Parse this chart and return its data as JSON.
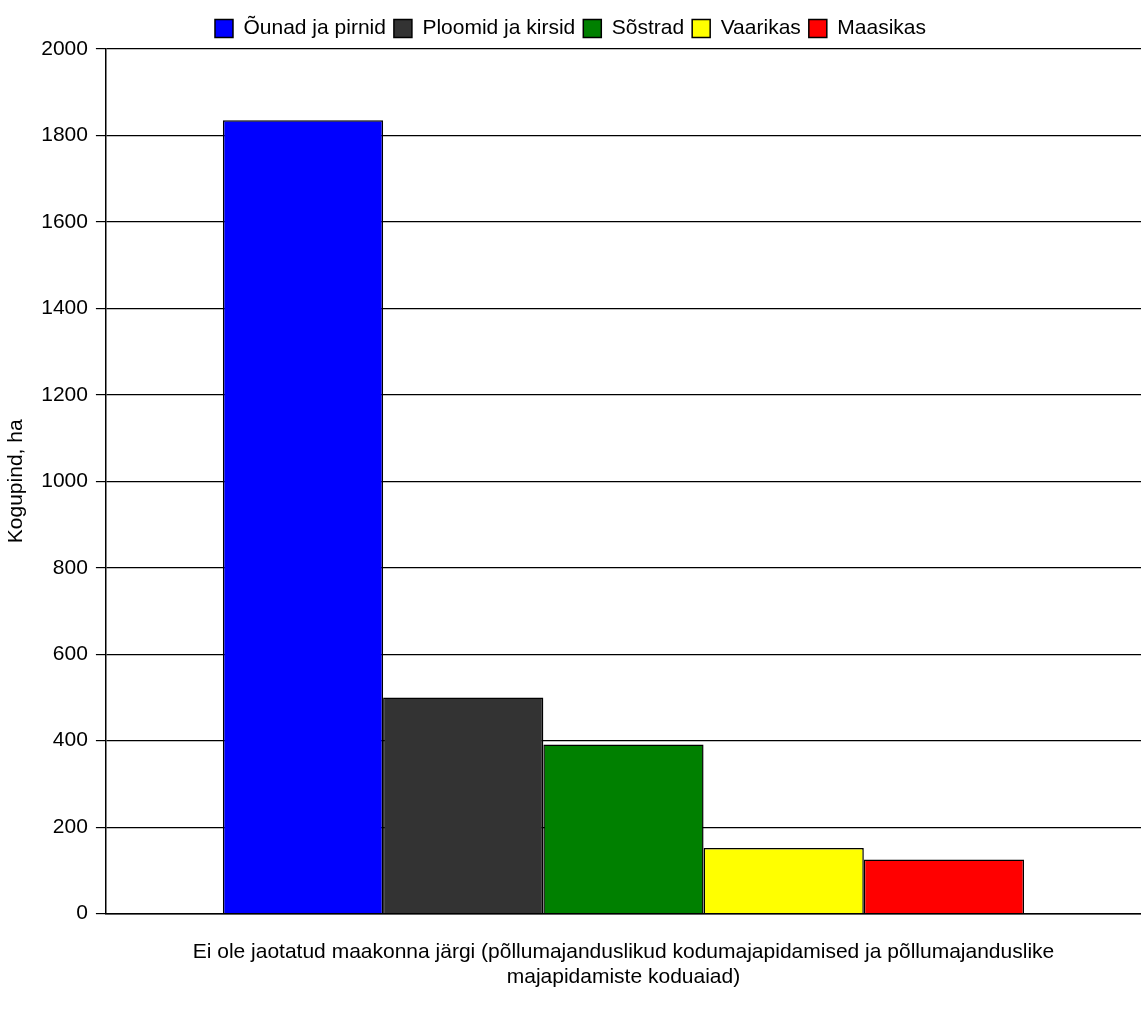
{
  "chart_data": {
    "type": "bar",
    "ylabel": "Kogupind, ha",
    "categories": [
      "Ei ole jaotatud maakonna järgi (põllumajanduslikud kodumajapidamised ja põllumajanduslike majapidamiste koduaiad)"
    ],
    "series": [
      {
        "name": "Õunad ja pirnid",
        "color": "#0000ff",
        "values": [
          1835
        ]
      },
      {
        "name": "Ploomid ja kirsid",
        "color": "#333333",
        "values": [
          500
        ]
      },
      {
        "name": "Sõstrad",
        "color": "#008000",
        "values": [
          391
        ]
      },
      {
        "name": "Vaarikas",
        "color": "#ffff00",
        "values": [
          152
        ]
      },
      {
        "name": "Maasikas",
        "color": "#ff0000",
        "values": [
          125
        ]
      }
    ],
    "ylim": [
      0,
      2000
    ],
    "yticks": [
      0,
      200,
      400,
      600,
      800,
      1000,
      1200,
      1400,
      1600,
      1800,
      2000
    ],
    "grid": "y",
    "legend": "top"
  }
}
